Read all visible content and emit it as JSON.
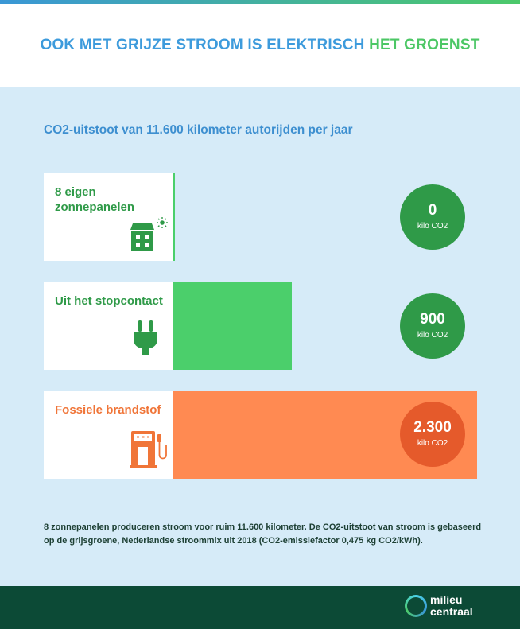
{
  "header": {
    "title_part1": "OOK MET GRIJZE STROOM IS ELEKTRISCH",
    "title_part2": "HET GROENST"
  },
  "chart_data": {
    "type": "bar",
    "title": "CO2-uitstoot van 11.600 kilometer autorijden per jaar",
    "categories": [
      "8 eigen zonnepanelen",
      "Uit het stopcontact",
      "Fossiele brandstof"
    ],
    "values": [
      0,
      900,
      2300
    ],
    "value_labels": [
      "0",
      "900",
      "2.300"
    ],
    "unit": "kilo CO2",
    "xlim": [
      0,
      2300
    ],
    "colors": {
      "bars": [
        "#4bcf6b",
        "#4bcf6b",
        "#ff8a52"
      ],
      "labels": [
        "#2f9a48",
        "#2f9a48",
        "#f07538"
      ],
      "badges": [
        "#2f9a48",
        "#2f9a48",
        "#e55a2b"
      ]
    },
    "icons": [
      "solar-house-icon",
      "plug-icon",
      "fuel-pump-icon"
    ]
  },
  "footnote": "8 zonnepanelen produceren stroom voor ruim 11.600 kilometer. De CO2-uitstoot van stroom is gebaseerd op de grijsgroene, Nederlandse stroommix uit 2018 (CO2-emissiefactor 0,475 kg CO2/kWh).",
  "footer": {
    "logo_line1": "milieu",
    "logo_line2": "centraal"
  }
}
